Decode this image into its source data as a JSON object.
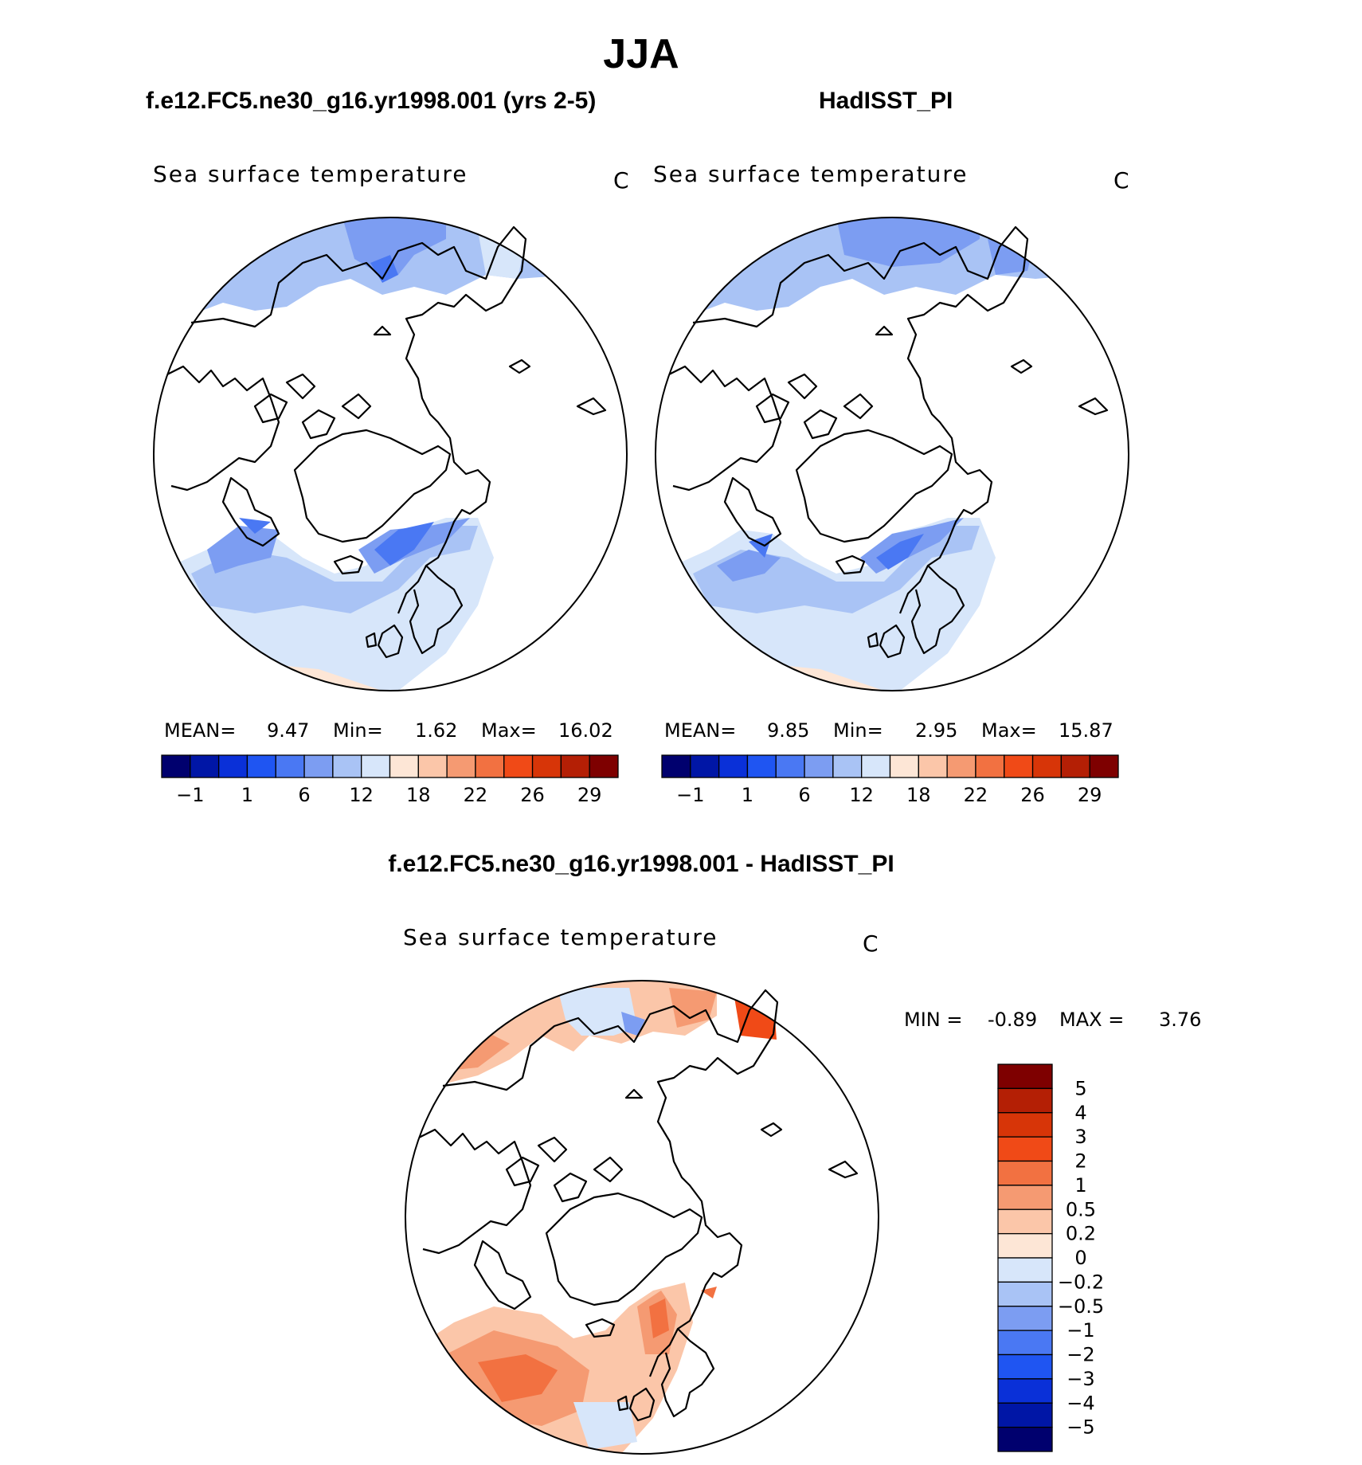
{
  "page_title": "JJA",
  "panels": [
    {
      "case_title": "f.e12.FC5.ne30_g16.yr1998.001 (yrs 2-5)",
      "variable": "Sea surface temperature",
      "units": "C",
      "stats": {
        "mean_label": "MEAN=",
        "mean": "9.47",
        "min_label": "Min=",
        "min": "1.62",
        "max_label": "Max=",
        "max": "16.02"
      },
      "colorbar": {
        "ticks": [
          "-1",
          "1",
          "6",
          "12",
          "18",
          "22",
          "26",
          "29"
        ],
        "colors": [
          "#00006e",
          "#0016a6",
          "#0a30d8",
          "#1f55f2",
          "#4a78f3",
          "#7c9df2",
          "#a9c3f5",
          "#d7e6fa",
          "#fde6d6",
          "#fbc6a9",
          "#f59a72",
          "#f27141",
          "#f04a17",
          "#d73508",
          "#b41f05",
          "#7e0000"
        ]
      }
    },
    {
      "case_title": "HadISST_PI",
      "variable": "Sea surface temperature",
      "units": "C",
      "stats": {
        "mean_label": "MEAN=",
        "mean": "9.85",
        "min_label": "Min=",
        "min": "2.95",
        "max_label": "Max=",
        "max": "15.87"
      },
      "colorbar": {
        "ticks": [
          "-1",
          "1",
          "6",
          "12",
          "18",
          "22",
          "26",
          "29"
        ],
        "colors": [
          "#00006e",
          "#0016a6",
          "#0a30d8",
          "#1f55f2",
          "#4a78f3",
          "#7c9df2",
          "#a9c3f5",
          "#d7e6fa",
          "#fde6d6",
          "#fbc6a9",
          "#f59a72",
          "#f27141",
          "#f04a17",
          "#d73508",
          "#b41f05",
          "#7e0000"
        ]
      }
    }
  ],
  "difference_panel": {
    "title": "f.e12.FC5.ne30_g16.yr1998.001 - HadISST_PI",
    "variable": "Sea surface temperature",
    "units": "C",
    "stats": {
      "min_label": "MIN =",
      "min": "-0.89",
      "max_label": "MAX =",
      "max": "3.76"
    },
    "colorbar": {
      "ticks": [
        "5",
        "4",
        "3",
        "2",
        "1",
        "0.5",
        "0.2",
        "0",
        "-0.2",
        "-0.5",
        "-1",
        "-2",
        "-3",
        "-4",
        "-5"
      ],
      "colors_top_to_bottom": [
        "#7e0000",
        "#b41f05",
        "#d73508",
        "#f04a17",
        "#f27141",
        "#f59a72",
        "#fbc6a9",
        "#fde6d6",
        "#d7e6fa",
        "#a9c3f5",
        "#7c9df2",
        "#4a78f3",
        "#1f55f2",
        "#0a30d8",
        "#0016a6",
        "#00006e"
      ]
    }
  }
}
